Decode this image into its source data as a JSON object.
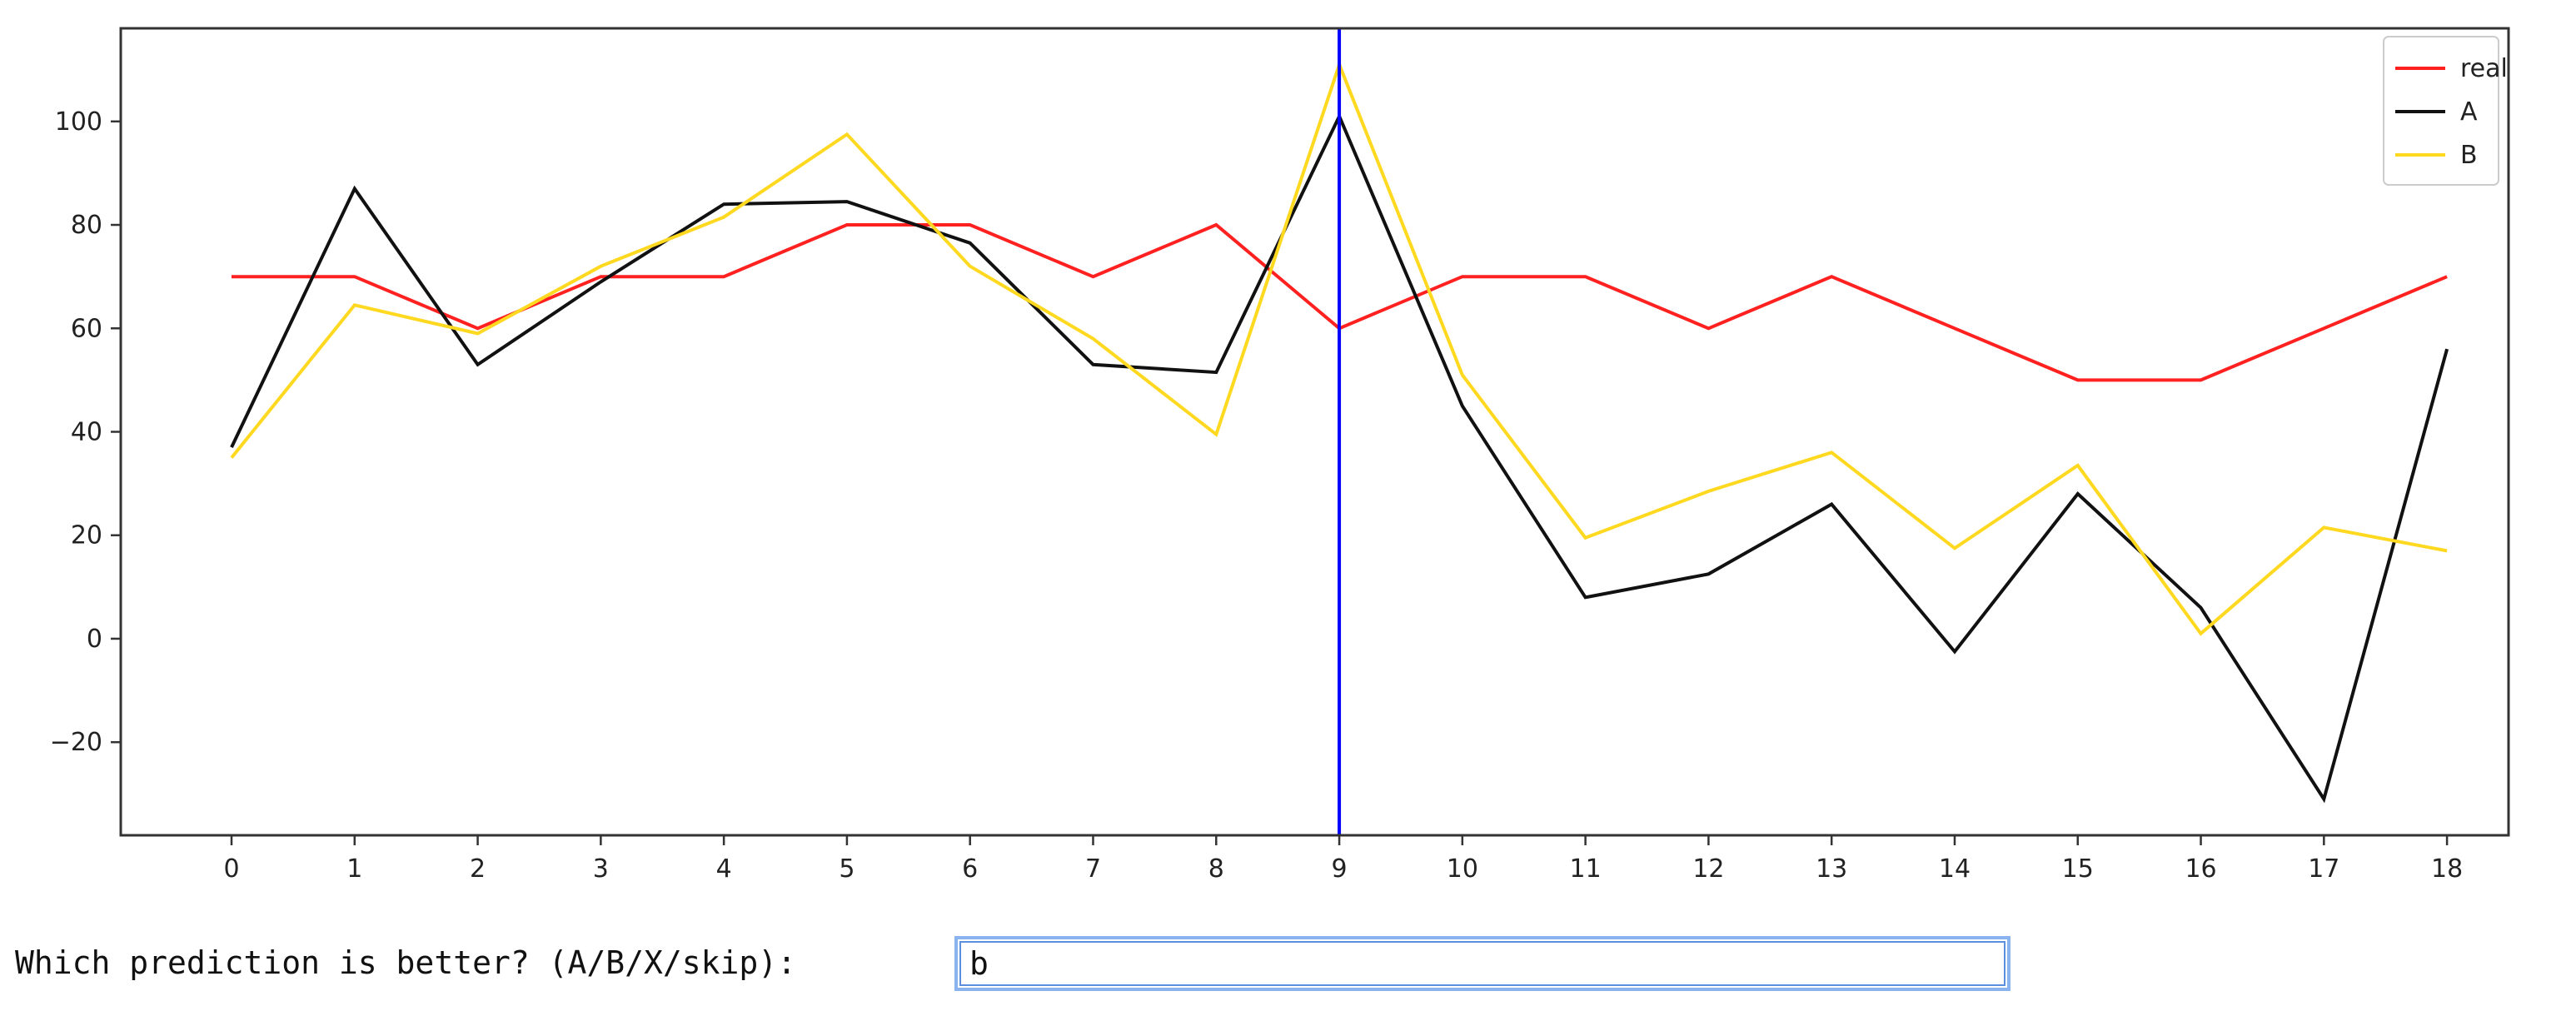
{
  "chart_data": {
    "type": "line",
    "x": [
      0,
      1,
      2,
      3,
      4,
      5,
      6,
      7,
      8,
      9,
      10,
      11,
      12,
      13,
      14,
      15,
      16,
      17,
      18
    ],
    "x_ticks": [
      "0",
      "1",
      "2",
      "3",
      "4",
      "5",
      "6",
      "7",
      "8",
      "9",
      "10",
      "11",
      "12",
      "13",
      "14",
      "15",
      "16",
      "17",
      "18"
    ],
    "y_ticks": [
      "100",
      "80",
      "60",
      "40",
      "20",
      "0",
      "−20"
    ],
    "y_tick_values": [
      100,
      80,
      60,
      40,
      20,
      0,
      -20
    ],
    "ylim": [
      -38,
      118
    ],
    "xlim": [
      -0.9,
      18.5
    ],
    "grid": false,
    "legend_position": "top-right",
    "vertical_line": {
      "x": 9,
      "color": "#0000ff"
    },
    "series": [
      {
        "name": "real",
        "color": "#ff2020",
        "values": [
          70,
          70,
          60,
          70,
          70,
          80,
          80,
          70,
          80,
          60,
          70,
          70,
          60,
          70,
          60,
          50,
          50,
          60,
          70
        ]
      },
      {
        "name": "A",
        "color": "#111111",
        "values": [
          37,
          87,
          53,
          69,
          84,
          84.5,
          76.5,
          53,
          51.5,
          101,
          45,
          8,
          12.5,
          26,
          -2.5,
          28,
          6,
          -31,
          56
        ]
      },
      {
        "name": "B",
        "color": "#ffd820",
        "values": [
          35,
          64.5,
          59,
          72,
          81.5,
          97.5,
          72,
          58,
          39.5,
          111,
          51,
          19.5,
          28.5,
          36,
          17.5,
          33.5,
          1,
          21.5,
          17
        ]
      }
    ]
  },
  "prompt": {
    "label": "Which prediction is better? (A/B/X/skip):",
    "input_value": "b"
  }
}
